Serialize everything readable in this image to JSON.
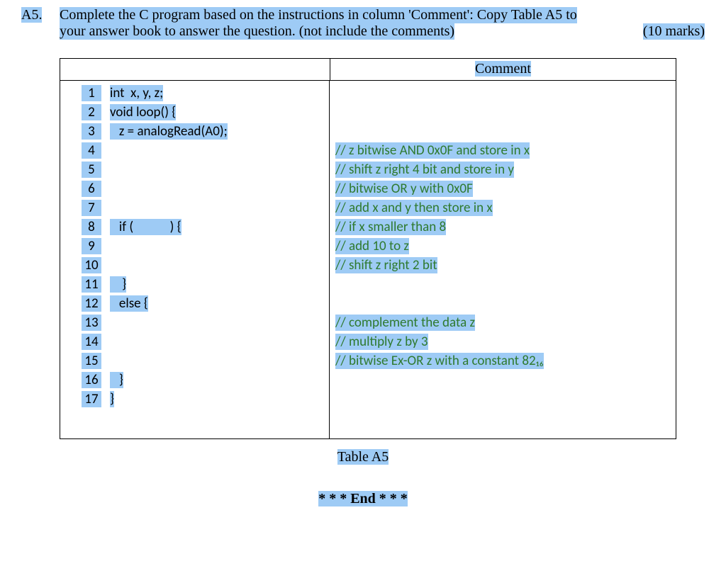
{
  "question": {
    "number": "A5.",
    "line1_left": "Complete the C program based on the instructions in column 'Comment': Copy Table A5 to",
    "line2_left": "your answer book to answer the question. (not include the comments)",
    "line2_right": "(10 marks)"
  },
  "table": {
    "header_right": "Comment",
    "caption": "Table A5",
    "end_text": "* * * End * * *",
    "rows": [
      {
        "n": "1",
        "code": "int  x, y, z;",
        "comment": ""
      },
      {
        "n": "2",
        "code": "void loop() {",
        "comment": ""
      },
      {
        "n": "3",
        "code": "   z = analogRead(A0);",
        "comment": ""
      },
      {
        "n": "4",
        "code": "",
        "comment": "// z bitwise AND 0x0F and store in x"
      },
      {
        "n": "5",
        "code": "",
        "comment": "// shift z right 4 bit and store in y"
      },
      {
        "n": "6",
        "code": "",
        "comment": "// bitwise OR y with 0x0F"
      },
      {
        "n": "7",
        "code": "",
        "comment": "// add x and y then store in x"
      },
      {
        "n": "8",
        "code": "   if (            ) {",
        "comment": "// if x smaller than 8"
      },
      {
        "n": "9",
        "code": "",
        "comment": "// add 10 to z"
      },
      {
        "n": "10",
        "code": "",
        "comment": "// shift z right 2 bit"
      },
      {
        "n": "11",
        "code": "    }",
        "comment": ""
      },
      {
        "n": "12",
        "code": "   else {",
        "comment": ""
      },
      {
        "n": "13",
        "code": "",
        "comment": "// complement the data z"
      },
      {
        "n": "14",
        "code": "",
        "comment": "// multiply z by 3"
      },
      {
        "n": "15",
        "code": "",
        "comment": "// bitwise Ex-OR z with a constant 82₁₆"
      },
      {
        "n": "16",
        "code": "   }",
        "comment": ""
      },
      {
        "n": "17",
        "code": "}",
        "comment": ""
      }
    ]
  },
  "colors": {
    "highlight": "#9ecbf5",
    "comment_text": "#2f7a2f"
  }
}
